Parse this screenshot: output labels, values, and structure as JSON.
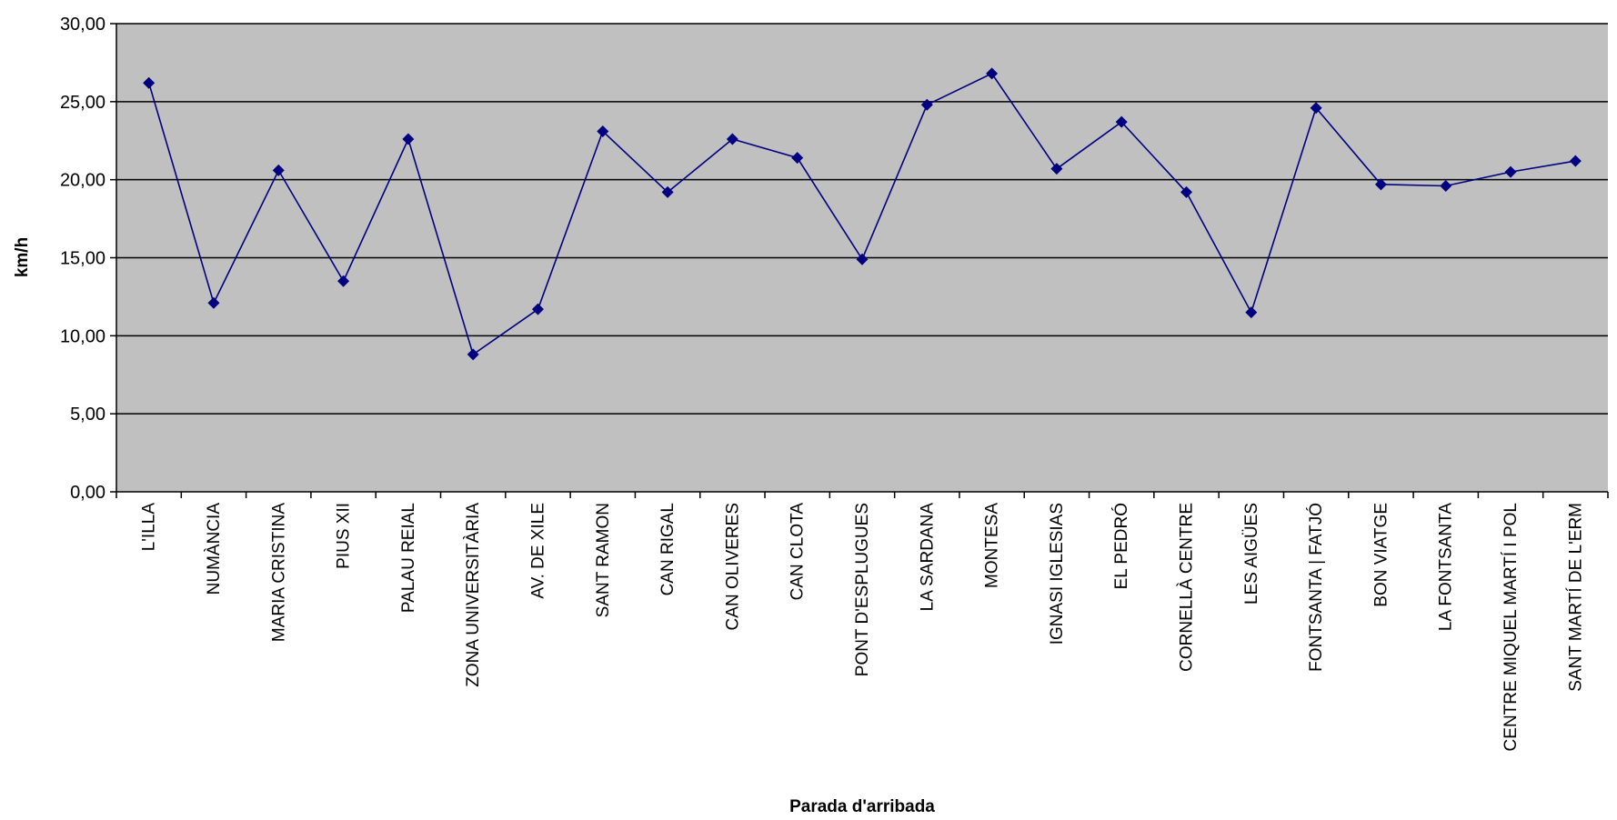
{
  "chart_data": {
    "type": "line",
    "title": "",
    "xlabel": "Parada d'arribada",
    "ylabel": "km/h",
    "ylim": [
      0,
      30
    ],
    "yticks": [
      "0,00",
      "5,00",
      "10,00",
      "15,00",
      "20,00",
      "25,00",
      "30,00"
    ],
    "grid": "horizontal",
    "legend": "none",
    "colors": {
      "plot_bg": "#c0c0c0",
      "line": "#000080",
      "grid": "#000000"
    },
    "categories": [
      "L'ILLA",
      "NUMÀNCIA",
      "MARIA CRISTINA",
      "PIUS XII",
      "PALAU REIAL",
      "ZONA UNIVERSITÀRIA",
      "AV. DE XILE",
      "SANT RAMON",
      "CAN RIGAL",
      "CAN OLIVERES",
      "CAN CLOTA",
      "PONT D'ESPLUGUES",
      "LA SARDANA",
      "MONTESA",
      "IGNASI IGLESIAS",
      "EL PEDRÓ",
      "CORNELLÀ CENTRE",
      "LES AIGÜES",
      "FONTSANTA | FATJÓ",
      "BON VIATGE",
      "LA FONTSANTA",
      "CENTRE MIQUEL MARTÍ I POL",
      "SANT MARTÍ DE L'ERM"
    ],
    "series": [
      {
        "values": [
          26.2,
          12.1,
          20.6,
          13.5,
          22.6,
          8.8,
          11.7,
          23.1,
          19.2,
          22.6,
          21.4,
          14.9,
          24.8,
          26.8,
          20.7,
          23.7,
          19.2,
          11.5,
          24.6,
          19.7,
          19.6,
          20.5,
          21.2
        ]
      }
    ]
  }
}
